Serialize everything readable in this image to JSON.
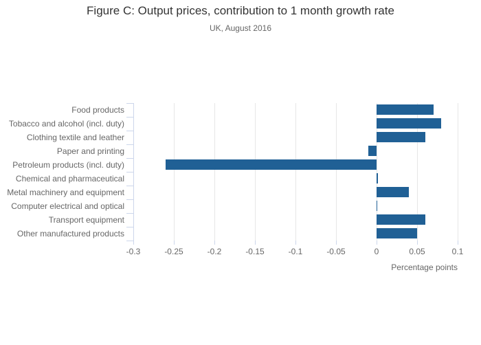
{
  "chart_data": {
    "type": "bar",
    "orientation": "horizontal",
    "title": "Figure C: Output prices, contribution to 1 month growth rate",
    "subtitle": "UK, August 2016",
    "categories": [
      "Food products",
      "Tobacco and alcohol (incl. duty)",
      "Clothing textile and leather",
      "Paper and printing",
      "Petroleum products (incl. duty)",
      "Chemical and pharmaceutical",
      "Metal machinery and equipment",
      "Computer electrical and optical",
      "Transport equipment",
      "Other manufactured products"
    ],
    "values": [
      0.07,
      0.08,
      0.06,
      -0.01,
      -0.26,
      0.002,
      0.04,
      0.001,
      0.06,
      0.05
    ],
    "xlabel": "Percentage points",
    "ylabel": "",
    "xlim": [
      -0.3,
      0.1
    ],
    "xticks": [
      -0.3,
      -0.25,
      -0.2,
      -0.15,
      -0.1,
      -0.05,
      0,
      0.05,
      0.1
    ],
    "xtick_labels": [
      "-0.3",
      "-0.25",
      "-0.2",
      "-0.15",
      "-0.1",
      "-0.05",
      "0",
      "0.05",
      "0.1"
    ],
    "grid": "vertical-gridlines-on",
    "legend": "none",
    "colors": {
      "bar": "#206095",
      "gridline": "#e6e6e6",
      "axis_line": "#ccd6eb",
      "title_text": "#333333",
      "subtitle_text": "#666666",
      "label_text": "#666666",
      "background": "#ffffff"
    }
  }
}
